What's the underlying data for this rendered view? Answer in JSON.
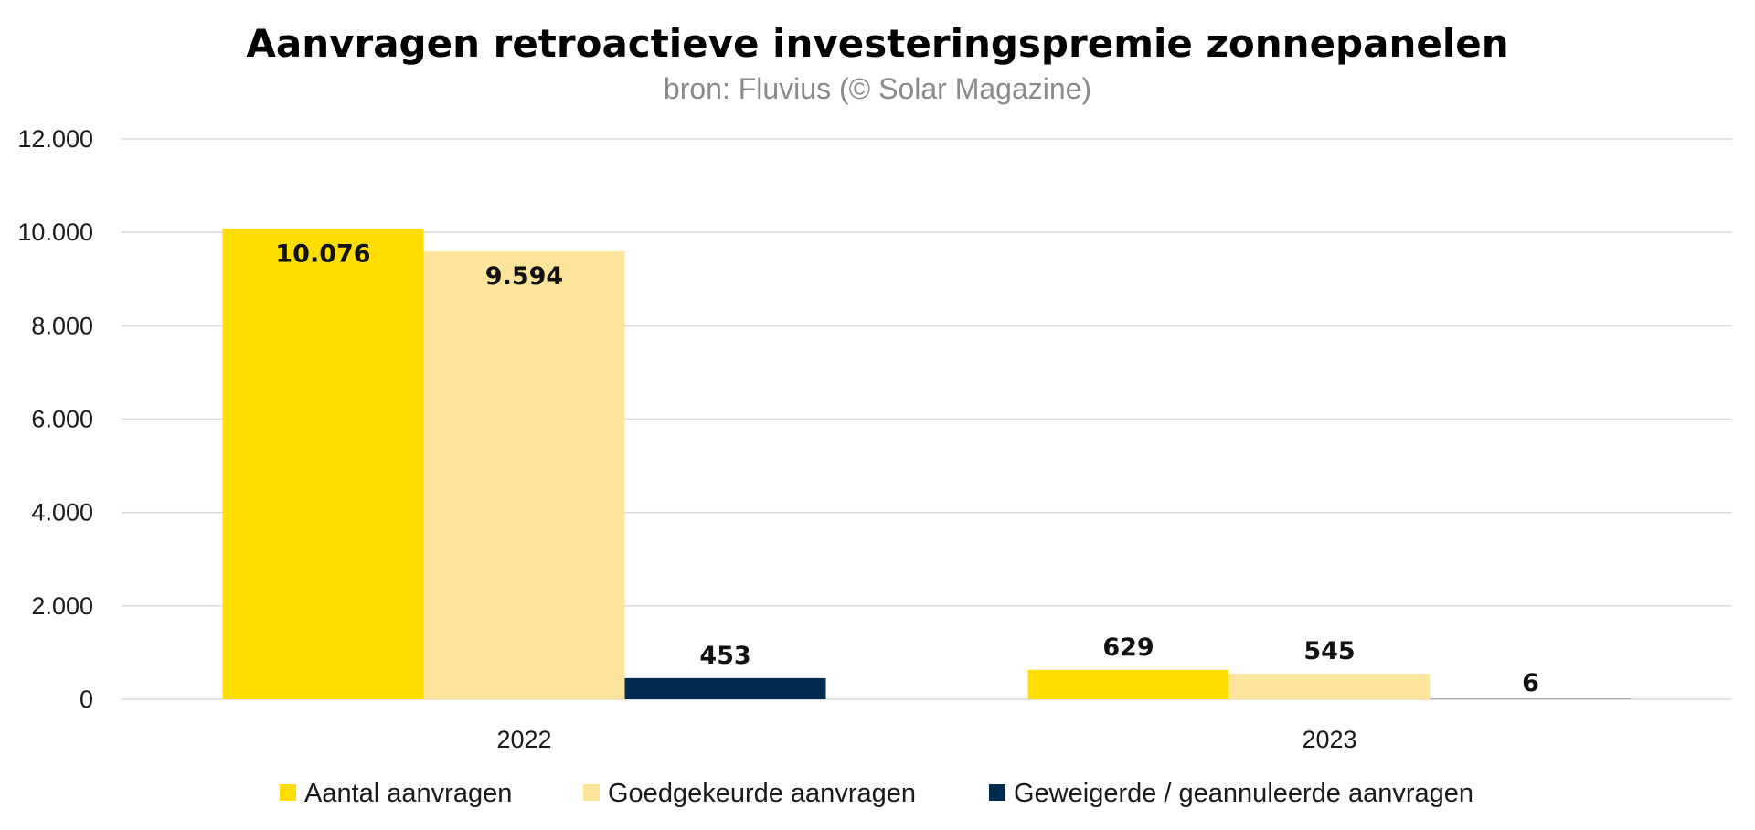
{
  "chart_data": {
    "type": "bar",
    "title": "Aanvragen retroactieve investeringspremie zonnepanelen",
    "subtitle": "bron: Fluvius (© Solar Magazine)",
    "categories": [
      "2022",
      "2023"
    ],
    "series": [
      {
        "name": "Aantal aanvragen",
        "values": [
          10076,
          629
        ],
        "labels": [
          "10.076",
          "629"
        ],
        "color": "#FFDD00"
      },
      {
        "name": "Goedgekeurde aanvragen",
        "values": [
          9594,
          545
        ],
        "labels": [
          "9.594",
          "545"
        ],
        "color": "#FCE59A"
      },
      {
        "name": "Geweigerde / geannuleerde aanvragen",
        "values": [
          453,
          6
        ],
        "labels": [
          "453",
          "6"
        ],
        "color": "#002B4F"
      }
    ],
    "ylim": [
      0,
      12000
    ],
    "yticks": [
      0,
      2000,
      4000,
      6000,
      8000,
      10000,
      12000
    ],
    "ytick_labels": [
      "0",
      "2.000",
      "4.000",
      "6.000",
      "8.000",
      "10.000",
      "12.000"
    ],
    "xlabel": "",
    "ylabel": "",
    "grid": true,
    "legend_position": "bottom"
  }
}
